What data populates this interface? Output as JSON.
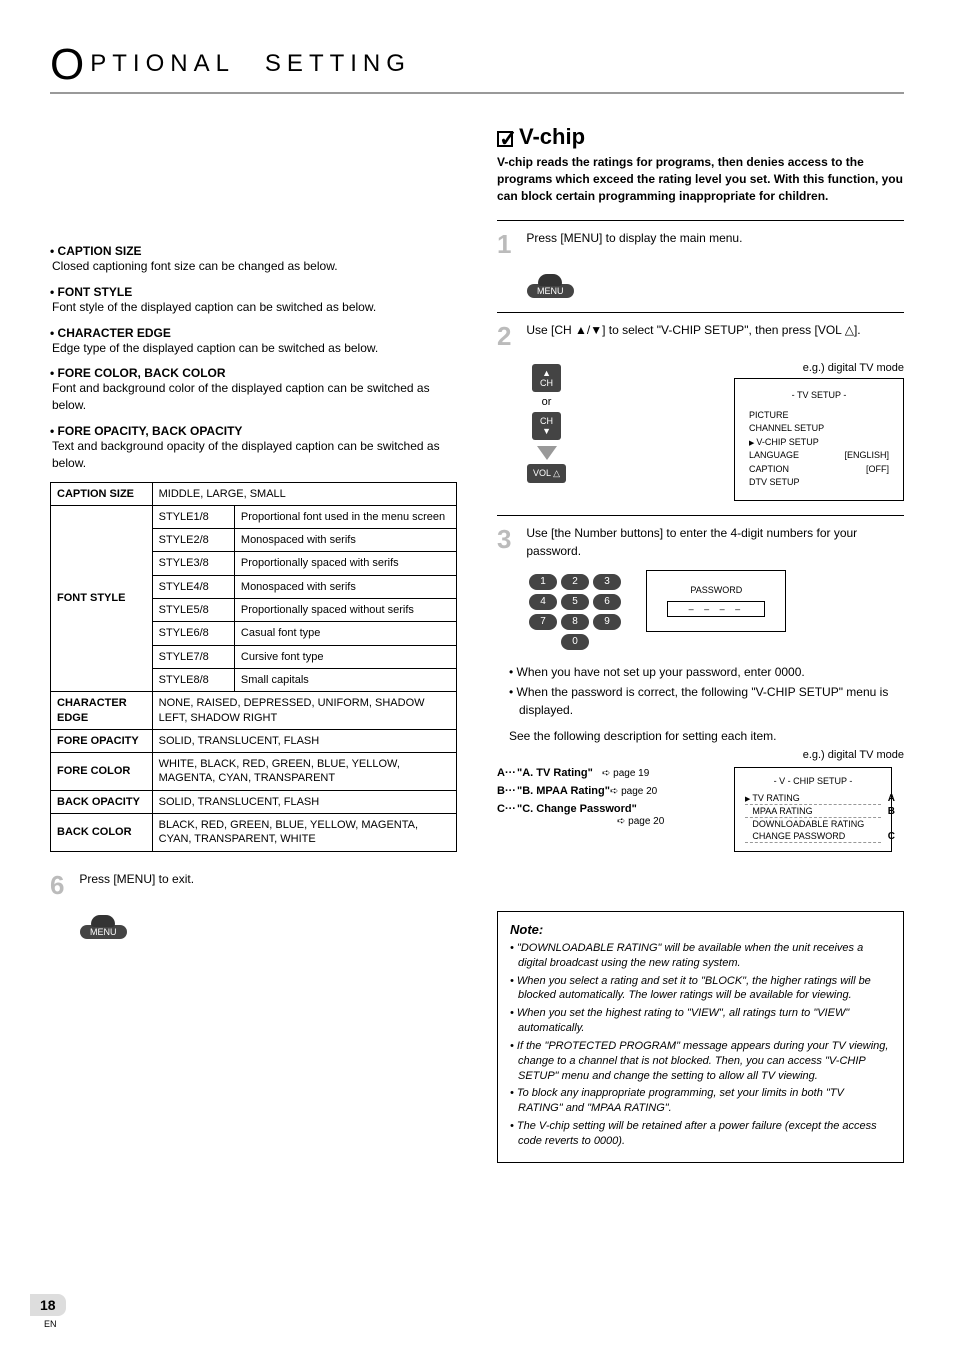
{
  "header": {
    "title": "PTIONAL SETTING"
  },
  "vchip": {
    "title": "V-chip",
    "intro": "V-chip reads the ratings for programs, then denies access to the programs which exceed the rating level you set. With this function, you can block certain programming inappropriate for children.",
    "step1": "Press [MENU] to display the main menu.",
    "menu_label": "MENU",
    "step2": "Use [CH ▲/▼] to select \"V-CHIP SETUP\", then press [VOL △].",
    "ch_up": "CH",
    "or": "or",
    "ch_dn": "CH",
    "vol": "VOL △",
    "eg_digital": "e.g.) digital TV mode",
    "tv_setup": {
      "title": "-   TV SETUP   -",
      "items": [
        "PICTURE",
        "CHANNEL SETUP",
        "V-CHIP  SETUP",
        "LANGUAGE",
        "CAPTION",
        "DTV SETUP"
      ],
      "lang_val": "[ENGLISH]",
      "cap_val": "[OFF]"
    },
    "step3": "Use [the Number buttons] to enter the 4-digit numbers for your password.",
    "nums": [
      "1",
      "2",
      "3",
      "4",
      "5",
      "6",
      "7",
      "8",
      "9",
      "0"
    ],
    "pwd_label": "PASSWORD",
    "pwd_dashes": "– – – –",
    "bullets": [
      "When you have not set up your password, enter 0000.",
      "When the password is correct, the following \"V-CHIP SETUP\" menu is displayed."
    ],
    "see_desc": "See the following description for setting each item.",
    "refs": [
      {
        "key": "A",
        "title": "\"A. TV Rating\"",
        "page": "➪ page 19"
      },
      {
        "key": "B",
        "title": "\"B. MPAA Rating\"",
        "page": "➪ page 20"
      },
      {
        "key": "C",
        "title": "\"C. Change Password\"",
        "page": "➪ page 20"
      }
    ],
    "vchip_box": {
      "title": "-  V - CHIP SETUP  -",
      "items": [
        "TV RATING",
        "MPAA RATING",
        "DOWNLOADABLE RATING",
        "CHANGE PASSWORD"
      ],
      "tags": [
        "A",
        "B",
        "",
        "C"
      ]
    },
    "note_title": "Note:",
    "notes": [
      "\"DOWNLOADABLE RATING\" will be available when the unit receives a digital broadcast using the new rating system.",
      "When you select a rating and set it to \"BLOCK\", the higher ratings will be blocked automatically. The lower ratings will be available for viewing.",
      "When you set the highest rating to \"VIEW\", all ratings turn to \"VIEW\" automatically.",
      "If the \"PROTECTED PROGRAM\" message appears during your TV viewing, change to a channel that is not blocked. Then, you can access \"V-CHIP SETUP\" menu and change the setting to allow all TV viewing.",
      "To block any inappropriate programming, set your limits in both \"TV RATING\" and \"MPAA RATING\".",
      "The V-chip setting will be retained after a power failure (except the access code reverts to 0000)."
    ]
  },
  "captions": [
    {
      "title": "• CAPTION SIZE",
      "desc": "Closed captioning font size can be changed as below."
    },
    {
      "title": "• FONT STYLE",
      "desc": "Font style of the displayed caption can be switched as below."
    },
    {
      "title": "• CHARACTER EDGE",
      "desc": "Edge type of the displayed caption can be switched as below."
    },
    {
      "title": "• FORE COLOR, BACK COLOR",
      "desc": "Font and background color of the displayed caption can be switched as below."
    },
    {
      "title": "• FORE OPACITY, BACK OPACITY",
      "desc": "Text and background opacity of the displayed caption can be switched as below."
    }
  ],
  "table": {
    "rows": [
      {
        "head": "CAPTION SIZE",
        "span": 1,
        "cells": [
          [
            "MIDDLE, LARGE, SMALL"
          ]
        ]
      },
      {
        "head": "FONT STYLE",
        "span": 8,
        "cells": [
          [
            "STYLE1/8",
            "Proportional font used in the menu screen"
          ],
          [
            "STYLE2/8",
            "Monospaced with serifs"
          ],
          [
            "STYLE3/8",
            "Proportionally spaced with serifs"
          ],
          [
            "STYLE4/8",
            "Monospaced with serifs"
          ],
          [
            "STYLE5/8",
            "Proportionally spaced without serifs"
          ],
          [
            "STYLE6/8",
            "Casual font type"
          ],
          [
            "STYLE7/8",
            "Cursive font type"
          ],
          [
            "STYLE8/8",
            "Small capitals"
          ]
        ]
      },
      {
        "head": "CHARACTER EDGE",
        "span": 1,
        "cells": [
          [
            "NONE, RAISED, DEPRESSED, UNIFORM, SHADOW LEFT, SHADOW RIGHT"
          ]
        ]
      },
      {
        "head": "FORE OPACITY",
        "span": 1,
        "cells": [
          [
            "SOLID, TRANSLUCENT, FLASH"
          ]
        ]
      },
      {
        "head": "FORE COLOR",
        "span": 1,
        "cells": [
          [
            "WHITE, BLACK, RED, GREEN, BLUE, YELLOW, MAGENTA, CYAN, TRANSPARENT"
          ]
        ]
      },
      {
        "head": "BACK OPACITY",
        "span": 1,
        "cells": [
          [
            "SOLID, TRANSLUCENT, FLASH"
          ]
        ]
      },
      {
        "head": "BACK COLOR",
        "span": 1,
        "cells": [
          [
            "BLACK, RED, GREEN, BLUE, YELLOW, MAGENTA, CYAN, TRANSPARENT, WHITE"
          ]
        ]
      }
    ]
  },
  "step6": "Press [MENU] to exit.",
  "page_num": "18",
  "en": "EN",
  "colors": {
    "grey": "#bbbbbb",
    "dark": "#444444"
  }
}
